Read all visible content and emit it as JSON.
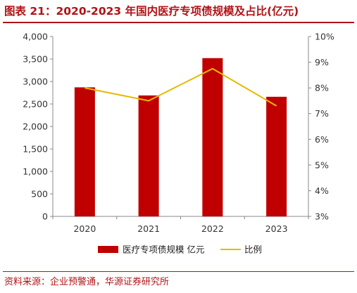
{
  "title": "图表 21：2020-2023 年国内医疗专项债规模及占比(亿元)",
  "source": "资料来源：企业预警通，华源证券研究所",
  "colors": {
    "bar": "#c00000",
    "line": "#e8b800",
    "accent": "#b01317"
  },
  "chart_data": {
    "type": "bar",
    "categories": [
      "2020",
      "2021",
      "2022",
      "2023"
    ],
    "series": [
      {
        "name": "医疗专项债规模 亿元",
        "type": "bar",
        "axis": "left",
        "values": [
          2870,
          2690,
          3520,
          2660
        ]
      },
      {
        "name": "比例",
        "type": "line",
        "axis": "right",
        "values": [
          8.0,
          7.5,
          8.75,
          7.3
        ]
      }
    ],
    "y_left": {
      "min": 0,
      "max": 4000,
      "ticks": [
        "0",
        "500",
        "1,000",
        "1,500",
        "2,000",
        "2,500",
        "3,000",
        "3,500",
        "4,000"
      ]
    },
    "y_right": {
      "min": 3,
      "max": 10,
      "unit": "%",
      "ticks": [
        "3%",
        "4%",
        "5%",
        "6%",
        "7%",
        "8%",
        "9%",
        "10%"
      ]
    },
    "legend": {
      "position": "bottom"
    },
    "grid": false
  }
}
